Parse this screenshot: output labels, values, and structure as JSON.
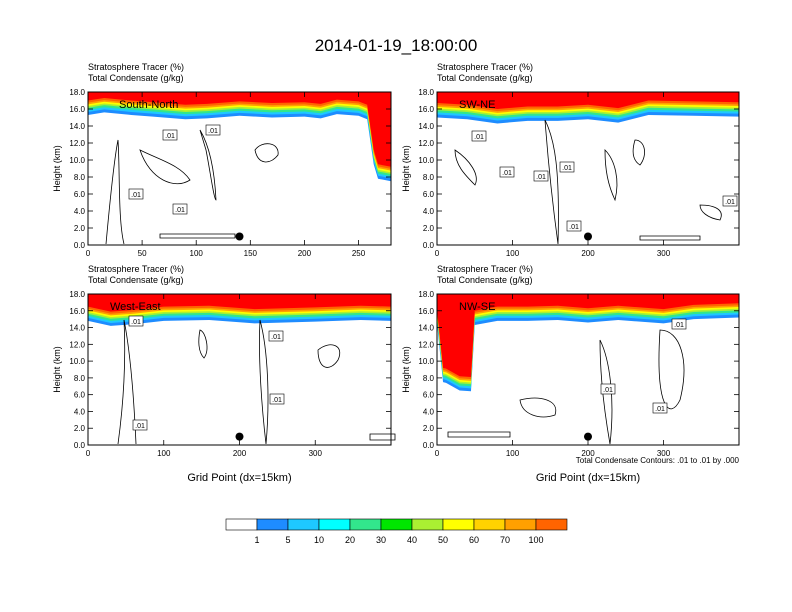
{
  "title": "2014-01-19_18:00:00",
  "colors": {
    "shading": [
      "#ffffff",
      "#1e8cff",
      "#1ec8ff",
      "#00ffff",
      "#32e68c",
      "#00e600",
      "#aaf032",
      "#ffff00",
      "#ffd200",
      "#ffa000",
      "#ff6400",
      "#ff0000"
    ],
    "contour": "#000000",
    "marker": "#000000"
  },
  "colorbar": {
    "labels": [
      "1",
      "5",
      "10",
      "20",
      "30",
      "40",
      "50",
      "60",
      "70",
      "100"
    ]
  },
  "contour_note": "Total Condensate Contours: .01 to .01 by .000",
  "chart_data": [
    {
      "type": "heatmap",
      "label": "South-North",
      "subtitle1": "Stratosphere Tracer   (%)",
      "subtitle2": "Total Condensate   (g/kg)",
      "ylabel": "Height (km)",
      "xlabel": "",
      "xlim": [
        0,
        280
      ],
      "ylim": [
        0,
        18
      ],
      "xticks": [
        "0",
        "50",
        "100",
        "150",
        "200",
        "250"
      ],
      "yticks": [
        "0.0",
        "2.0",
        "4.0",
        "6.0",
        "8.0",
        "10.0",
        "12.0",
        "14.0",
        "16.0",
        "18.0"
      ],
      "contour_labels": [
        ".01",
        ".01",
        ".01",
        ".01"
      ],
      "tropopause": [
        [
          0,
          15.3
        ],
        [
          15,
          15.6
        ],
        [
          40,
          15.3
        ],
        [
          60,
          15.1
        ],
        [
          90,
          14.8
        ],
        [
          110,
          14.9
        ],
        [
          140,
          15.2
        ],
        [
          170,
          15.0
        ],
        [
          200,
          15.1
        ],
        [
          215,
          14.9
        ],
        [
          230,
          15.4
        ],
        [
          250,
          15.2
        ],
        [
          258,
          14.8
        ],
        [
          264,
          9.5
        ],
        [
          268,
          7.8
        ],
        [
          280,
          7.5
        ]
      ],
      "marker": {
        "x": 140,
        "y": 1.0
      }
    },
    {
      "type": "heatmap",
      "label": "SW-NE",
      "subtitle1": "Stratosphere Tracer   (%)",
      "subtitle2": "Total Condensate   (g/kg)",
      "ylabel": "Height (km)",
      "xlabel": "",
      "xlim": [
        0,
        400
      ],
      "ylim": [
        0,
        18
      ],
      "xticks": [
        "0",
        "100",
        "200",
        "300"
      ],
      "yticks": [
        "0.0",
        "2.0",
        "4.0",
        "6.0",
        "8.0",
        "10.0",
        "12.0",
        "14.0",
        "16.0",
        "18.0"
      ],
      "contour_labels": [
        ".01",
        ".01",
        ".01",
        ".01",
        ".01",
        ".01"
      ],
      "tropopause": [
        [
          0,
          15.0
        ],
        [
          40,
          14.8
        ],
        [
          80,
          14.3
        ],
        [
          120,
          14.6
        ],
        [
          160,
          14.6
        ],
        [
          200,
          14.8
        ],
        [
          240,
          14.4
        ],
        [
          280,
          15.3
        ],
        [
          340,
          15.2
        ],
        [
          400,
          15.1
        ]
      ],
      "marker": {
        "x": 200,
        "y": 1.0
      }
    },
    {
      "type": "heatmap",
      "label": "West-East",
      "subtitle1": "Stratosphere Tracer   (%)",
      "subtitle2": "Total Condensate   (g/kg)",
      "ylabel": "Height (km)",
      "xlabel": "Grid Point (dx=15km)",
      "xlim": [
        0,
        400
      ],
      "ylim": [
        0,
        18
      ],
      "xticks": [
        "0",
        "100",
        "200",
        "300"
      ],
      "yticks": [
        "0.0",
        "2.0",
        "4.0",
        "6.0",
        "8.0",
        "10.0",
        "12.0",
        "14.0",
        "16.0",
        "18.0"
      ],
      "contour_labels": [
        ".01",
        ".01",
        ".01",
        ".01"
      ],
      "tropopause": [
        [
          0,
          14.8
        ],
        [
          30,
          14.2
        ],
        [
          60,
          14.4
        ],
        [
          100,
          14.8
        ],
        [
          160,
          14.9
        ],
        [
          220,
          14.5
        ],
        [
          260,
          14.6
        ],
        [
          300,
          14.7
        ],
        [
          360,
          14.9
        ],
        [
          400,
          14.8
        ]
      ],
      "marker": {
        "x": 200,
        "y": 1.0
      }
    },
    {
      "type": "heatmap",
      "label": "NW-SE",
      "subtitle1": "Stratosphere Tracer   (%)",
      "subtitle2": "Total Condensate   (g/kg)",
      "ylabel": "Height (km)",
      "xlabel": "Grid Point (dx=15km)",
      "xlim": [
        0,
        400
      ],
      "ylim": [
        0,
        18
      ],
      "xticks": [
        "0",
        "100",
        "200",
        "300"
      ],
      "yticks": [
        "0.0",
        "2.0",
        "4.0",
        "6.0",
        "8.0",
        "10.0",
        "12.0",
        "14.0",
        "16.0",
        "18.0"
      ],
      "contour_labels": [
        ".01",
        ".01",
        ".01"
      ],
      "tropopause": [
        [
          0,
          14.5
        ],
        [
          8,
          7.5
        ],
        [
          12,
          7.4
        ],
        [
          30,
          6.5
        ],
        [
          45,
          6.4
        ],
        [
          50,
          14.3
        ],
        [
          80,
          14.8
        ],
        [
          120,
          14.8
        ],
        [
          160,
          14.9
        ],
        [
          200,
          14.6
        ],
        [
          240,
          14.9
        ],
        [
          300,
          14.5
        ],
        [
          340,
          15.0
        ],
        [
          400,
          15.2
        ]
      ],
      "marker": {
        "x": 200,
        "y": 1.0
      }
    }
  ]
}
